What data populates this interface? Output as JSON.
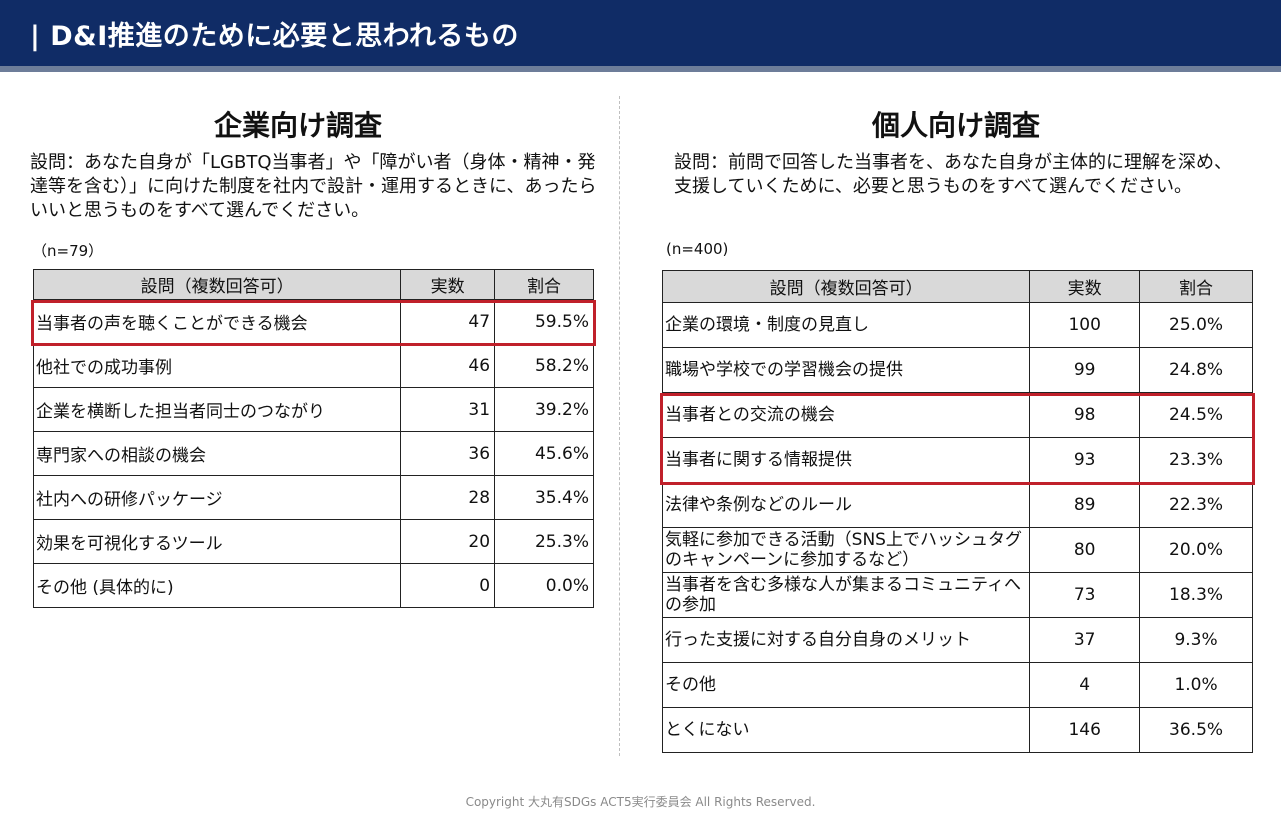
{
  "header": {
    "title": "| D&I推進のために必要と思われるもの"
  },
  "left": {
    "title": "企業向け調査",
    "question": "設問：あなた自身が「LGBTQ当事者」や「障がい者（身体・精神・発達等を含む）」に向けた制度を社内で設計・運用するときに、あったらいいと思うものをすべて選んでください。",
    "n": "（n=79）",
    "headers": [
      "設問（複数回答可）",
      "実数",
      "割合"
    ],
    "rows": [
      {
        "label": "当事者の声を聴くことができる機会",
        "count": "47",
        "pct": "59.5%"
      },
      {
        "label": "他社での成功事例",
        "count": "46",
        "pct": "58.2%"
      },
      {
        "label": "企業を横断した担当者同士のつながり",
        "count": "31",
        "pct": "39.2%"
      },
      {
        "label": "専門家への相談の機会",
        "count": "36",
        "pct": "45.6%"
      },
      {
        "label": "社内への研修パッケージ",
        "count": "28",
        "pct": "35.4%"
      },
      {
        "label": "効果を可視化するツール",
        "count": "20",
        "pct": "25.3%"
      },
      {
        "label": "その他 (具体的に)",
        "count": "0",
        "pct": "0.0%"
      }
    ]
  },
  "right": {
    "title": "個人向け調査",
    "question": "設問：前問で回答した当事者を、あなた自身が主体的に理解を深め、支援していくために、必要と思うものをすべて選んでください。",
    "n": "(n=400)",
    "headers": [
      "設問（複数回答可）",
      "実数",
      "割合"
    ],
    "rows": [
      {
        "label": "企業の環境・制度の見直し",
        "count": "100",
        "pct": "25.0%"
      },
      {
        "label": "職場や学校での学習機会の提供",
        "count": "99",
        "pct": "24.8%"
      },
      {
        "label": "当事者との交流の機会",
        "count": "98",
        "pct": "24.5%"
      },
      {
        "label": "当事者に関する情報提供",
        "count": "93",
        "pct": "23.3%"
      },
      {
        "label": "法律や条例などのルール",
        "count": "89",
        "pct": "22.3%"
      },
      {
        "label": "気軽に参加できる活動（SNS上でハッシュタグのキャンペーンに参加するなど）",
        "count": "80",
        "pct": "20.0%"
      },
      {
        "label": "当事者を含む多様な人が集まるコミュニティへの参加",
        "count": "73",
        "pct": "18.3%"
      },
      {
        "label": "行った支援に対する自分自身のメリット",
        "count": "37",
        "pct": "9.3%"
      },
      {
        "label": "その他",
        "count": "4",
        "pct": "1.0%"
      },
      {
        "label": "とくにない",
        "count": "146",
        "pct": "36.5%"
      }
    ]
  },
  "footer": {
    "copyright": "Copyright 大丸有SDGs ACT5実行委員会 All Rights Reserved."
  }
}
